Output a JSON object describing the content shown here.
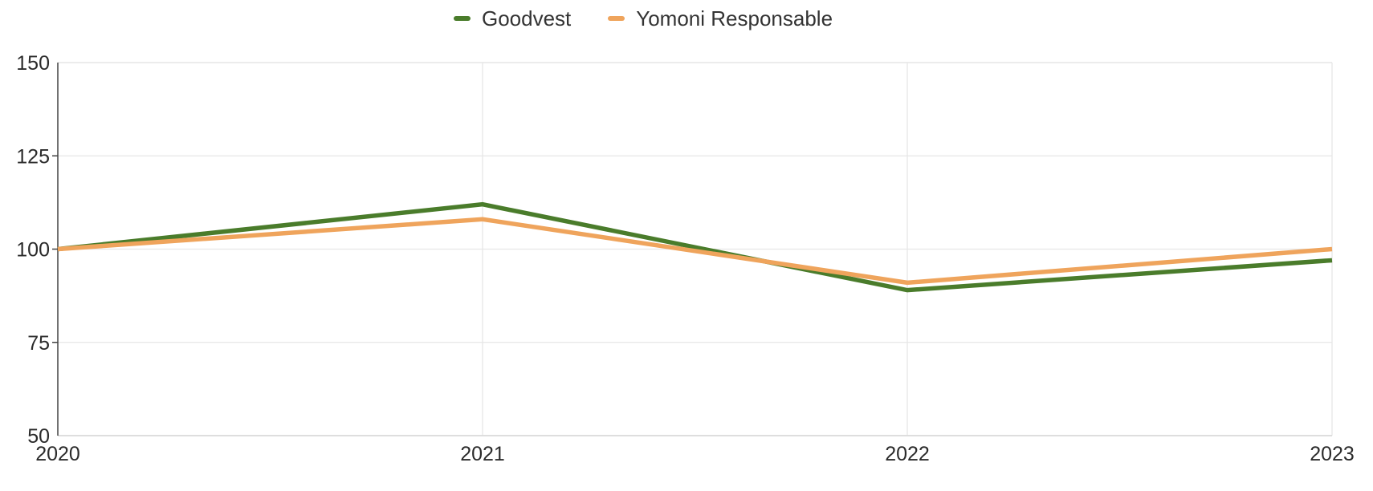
{
  "chart_data": {
    "type": "line",
    "categories": [
      "2020",
      "2021",
      "2022",
      "2023"
    ],
    "series": [
      {
        "name": "Goodvest",
        "color": "#4a7c2b",
        "values": [
          100,
          112,
          89,
          97
        ]
      },
      {
        "name": "Yomoni Responsable",
        "color": "#efa45c",
        "values": [
          100,
          108,
          91,
          100
        ]
      }
    ],
    "title": "",
    "xlabel": "",
    "ylabel": "",
    "ylim": [
      50,
      150
    ],
    "yticks": [
      50,
      75,
      100,
      125,
      150
    ],
    "grid": true,
    "legend_position": "top-center",
    "line_width": 5.5,
    "colors": {
      "axis": "#424242",
      "grid": "#e6e6e6",
      "plot_border": "#e0e0e0",
      "bottom_axis": "#d6d6d6",
      "label": "#2b2b2b",
      "legend_text": "#333333",
      "background": "#ffffff"
    }
  }
}
